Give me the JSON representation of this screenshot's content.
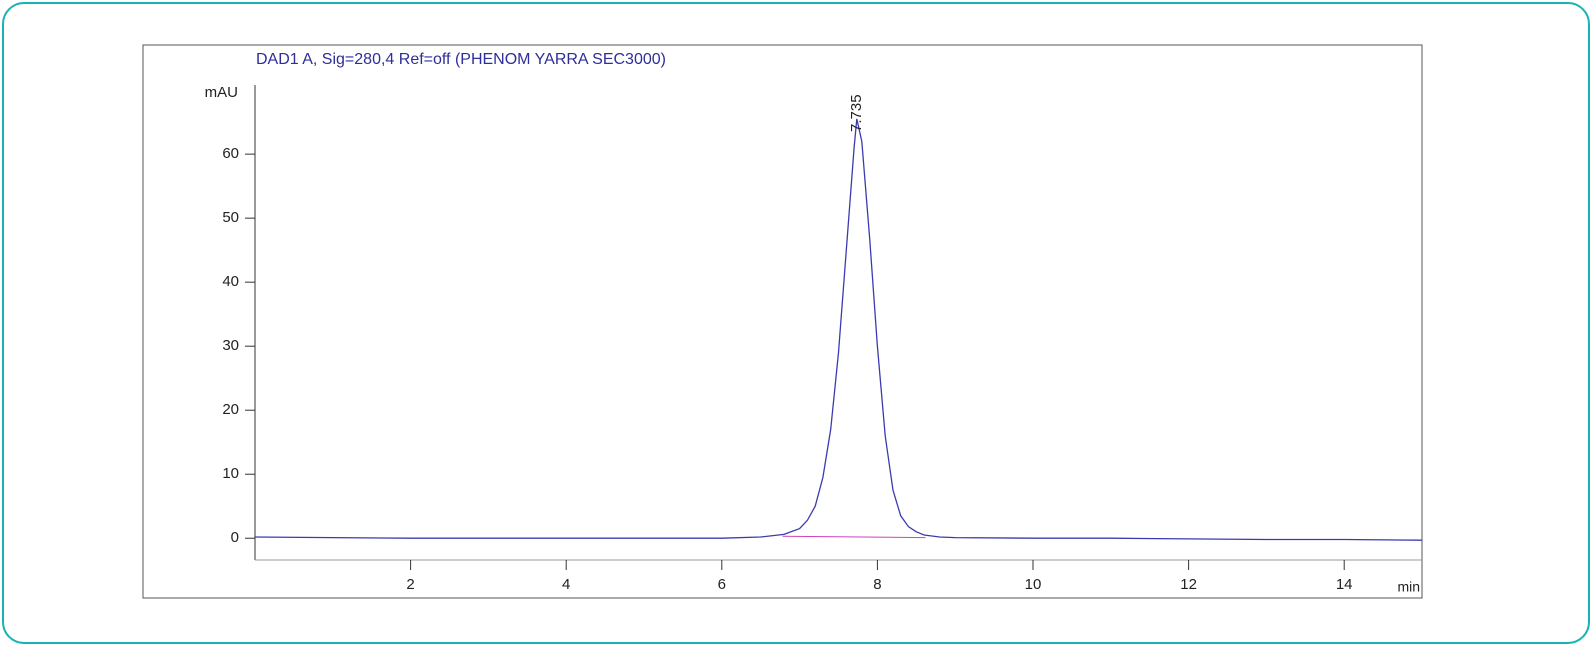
{
  "chart_data": {
    "type": "line",
    "title": "DAD1 A, Sig=280,4 Ref=off (PHENOM YARRA SEC3000)",
    "y_label": "mAU",
    "x_label": "min",
    "x": [
      0,
      1,
      2,
      3,
      4,
      5,
      6,
      6.5,
      6.8,
      7.0,
      7.1,
      7.2,
      7.3,
      7.4,
      7.5,
      7.6,
      7.7,
      7.735,
      7.8,
      7.9,
      8.0,
      8.1,
      8.2,
      8.3,
      8.4,
      8.5,
      8.6,
      8.8,
      9,
      10,
      11,
      12,
      13,
      14,
      15
    ],
    "values": [
      0.2,
      0.1,
      0,
      0,
      0,
      0,
      0,
      0.2,
      0.6,
      1.5,
      2.8,
      5,
      9.5,
      17,
      29,
      45,
      61,
      65.5,
      62,
      47,
      30,
      16,
      7.5,
      3.5,
      1.8,
      1,
      0.5,
      0.2,
      0.1,
      0,
      0,
      -0.1,
      -0.2,
      -0.2,
      -0.3
    ],
    "color": "#3b3bb0",
    "baseline": {
      "x": [
        6.78,
        8.62
      ],
      "values": [
        0.3,
        0.1
      ],
      "color": "#d040c0"
    },
    "peak_label": {
      "text": "7.735",
      "x": 7.735
    },
    "xlim": [
      0,
      15
    ],
    "xticks": [
      2,
      4,
      6,
      8,
      10,
      12,
      14
    ],
    "ylim": [
      -3.4,
      70.8
    ],
    "yticks": [
      0,
      10,
      20,
      30,
      40,
      50,
      60
    ]
  }
}
